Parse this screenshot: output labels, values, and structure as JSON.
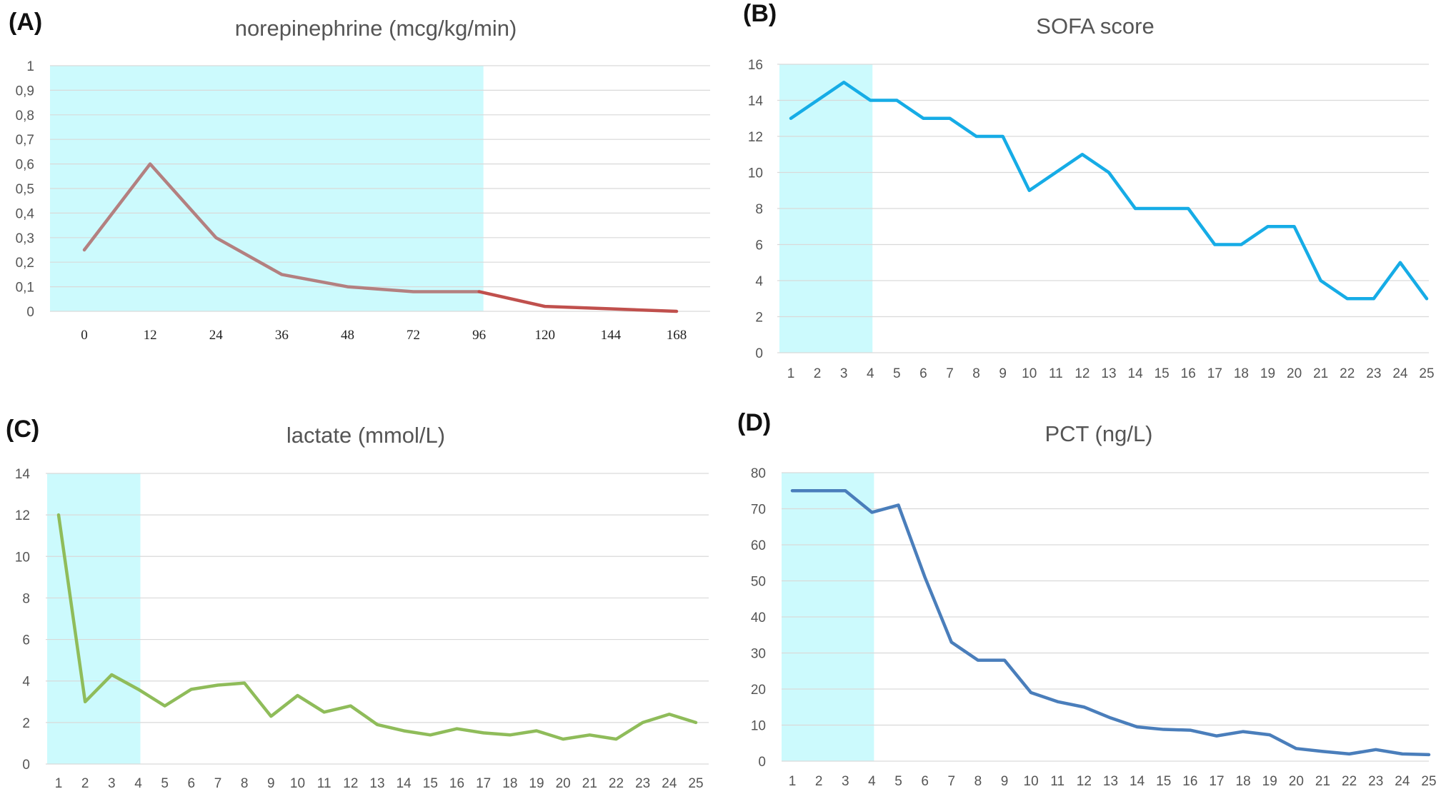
{
  "chart_data": [
    {
      "panel": "(A)",
      "type": "line",
      "title": "norepinephrine (mcg/kg/min)",
      "xlabel": "",
      "ylabel": "",
      "categories": [
        "0",
        "12",
        "24",
        "36",
        "48",
        "72",
        "96",
        "120",
        "144",
        "168"
      ],
      "values": [
        0.25,
        0.6,
        0.3,
        0.15,
        0.1,
        0.08,
        0.08,
        0.02,
        0.01,
        0.0
      ],
      "ylim": [
        0,
        1
      ],
      "yticks": [
        "0",
        "0,1",
        "0,2",
        "0,3",
        "0,4",
        "0,5",
        "0,6",
        "0,7",
        "0,8",
        "0,9",
        "1"
      ],
      "grid": true,
      "shaded_range": [
        "0",
        "96"
      ],
      "colors": {
        "line_shaded": "#b38080",
        "line": "#c0504d",
        "shade": "#ccfafd"
      }
    },
    {
      "panel": "(B)",
      "type": "line",
      "title": "SOFA score",
      "xlabel": "",
      "ylabel": "",
      "categories": [
        "1",
        "2",
        "3",
        "4",
        "5",
        "6",
        "7",
        "8",
        "9",
        "10",
        "11",
        "12",
        "13",
        "14",
        "15",
        "16",
        "17",
        "18",
        "19",
        "20",
        "21",
        "22",
        "23",
        "24",
        "25"
      ],
      "values": [
        13,
        14,
        15,
        14,
        14,
        13,
        13,
        12,
        12,
        9,
        10,
        11,
        10,
        8,
        8,
        8,
        6,
        6,
        7,
        7,
        4,
        3,
        3,
        5,
        3
      ],
      "ylim": [
        0,
        16
      ],
      "yticks": [
        "0",
        "2",
        "4",
        "6",
        "8",
        "10",
        "12",
        "14",
        "16"
      ],
      "grid": true,
      "shaded_range": [
        "1",
        "4"
      ],
      "colors": {
        "line": "#16ace6",
        "shade": "#ccfafd"
      }
    },
    {
      "panel": "(C)",
      "type": "line",
      "title": "lactate (mmol/L)",
      "xlabel": "",
      "ylabel": "",
      "categories": [
        "1",
        "2",
        "3",
        "4",
        "5",
        "6",
        "7",
        "8",
        "9",
        "10",
        "11",
        "12",
        "13",
        "14",
        "15",
        "16",
        "17",
        "18",
        "19",
        "20",
        "21",
        "22",
        "23",
        "24",
        "25"
      ],
      "values": [
        12,
        3,
        4.3,
        3.6,
        2.8,
        3.6,
        3.8,
        3.9,
        2.3,
        3.3,
        2.5,
        2.8,
        1.9,
        1.6,
        1.4,
        1.7,
        1.5,
        1.4,
        1.6,
        1.2,
        1.4,
        1.2,
        2.0,
        2.4,
        2.0
      ],
      "ylim": [
        0,
        14
      ],
      "yticks": [
        "0",
        "2",
        "4",
        "6",
        "8",
        "10",
        "12",
        "14"
      ],
      "grid": true,
      "shaded_range": [
        "1",
        "4"
      ],
      "colors": {
        "line": "#8fbc5a",
        "shade": "#ccfafd"
      }
    },
    {
      "panel": "(D)",
      "type": "line",
      "title": "PCT (ng/L)",
      "xlabel": "",
      "ylabel": "",
      "categories": [
        "1",
        "2",
        "3",
        "4",
        "5",
        "6",
        "7",
        "8",
        "9",
        "10",
        "11",
        "12",
        "13",
        "14",
        "15",
        "16",
        "17",
        "18",
        "19",
        "20",
        "21",
        "22",
        "23",
        "24",
        "25"
      ],
      "values": [
        75,
        75,
        75,
        69,
        71,
        51,
        33,
        28,
        28,
        19,
        16.5,
        15,
        12,
        9.5,
        8.8,
        8.6,
        7,
        8.2,
        7.3,
        3.5,
        2.7,
        2,
        3.2,
        2,
        1.8
      ],
      "ylim": [
        0,
        80
      ],
      "yticks": [
        "0",
        "10",
        "20",
        "30",
        "40",
        "50",
        "60",
        "70",
        "80"
      ],
      "grid": true,
      "shaded_range": [
        "1",
        "4"
      ],
      "colors": {
        "line": "#4a7ebb",
        "shade": "#ccfafd"
      }
    }
  ]
}
